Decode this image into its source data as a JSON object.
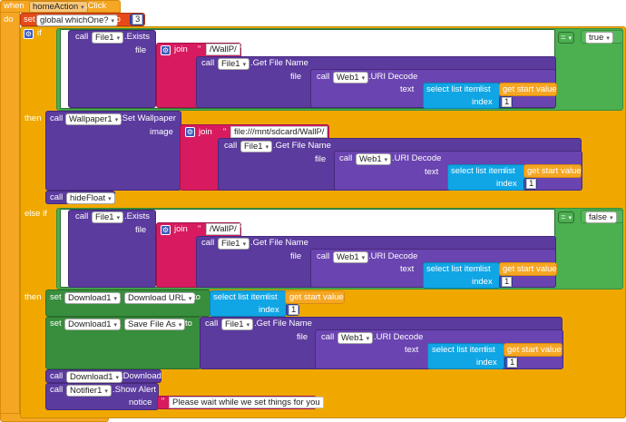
{
  "event": {
    "when": "when",
    "component": "homeAction",
    "event": ".Click",
    "do": "do"
  },
  "set_global": {
    "set": "set",
    "var": "global whichOne?",
    "to": "to",
    "value": "3"
  },
  "if_block": {
    "if": "if",
    "then": "then",
    "else_if": "else if"
  },
  "call": "call",
  "file1": "File1",
  "exists": ".Exists",
  "file": "file",
  "join": "join",
  "wallp": "/WallP/",
  "get_file_name": ".Get File Name",
  "web1": "Web1",
  "uri_decode": ".URI Decode",
  "text": "text",
  "select_list_item": "select list item",
  "list": "list",
  "index": "index",
  "index_val": "1",
  "get_start_value": "get start value",
  "eq": "=",
  "true": "true",
  "false": "false",
  "wallpaper1": "Wallpaper1",
  "set_wallpaper": ".Set Wallpaper",
  "image": "image",
  "sdcard": "file:///mnt/sdcard/WallP/",
  "hide_float": "hideFloat",
  "set": "set",
  "to": "to",
  "download1": "Download1",
  "download_url": "Download URL",
  "save_file_as": "Save File As",
  "download": ".Download",
  "notifier1": "Notifier1",
  "show_alert": ".Show Alert",
  "notice": "notice",
  "notice_text": "Please wait while we set things for you",
  "dot": "."
}
